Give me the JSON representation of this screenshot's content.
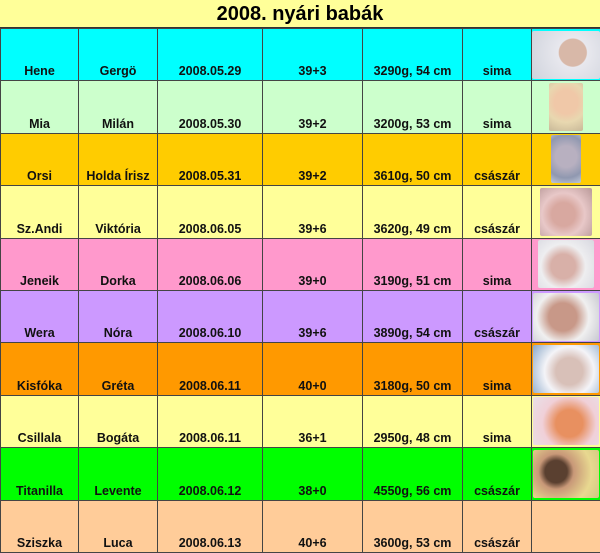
{
  "title": "2008. nyári babák",
  "rows": [
    {
      "mother": "Hene",
      "baby": "Gergö",
      "date": "2008.05.29",
      "week": "39+3",
      "size": "3290g, 54 cm",
      "birth": "sima",
      "color": "#00ffff",
      "photo": true
    },
    {
      "mother": "Mia",
      "baby": "Milán",
      "date": "2008.05.30",
      "week": "39+2",
      "size": "3200g, 53 cm",
      "birth": "sima",
      "color": "#ccffcc",
      "photo": true
    },
    {
      "mother": "Orsi",
      "baby": "Holda Írisz",
      "date": "2008.05.31",
      "week": "39+2",
      "size": "3610g, 50 cm",
      "birth": "császár",
      "color": "#ffcc00",
      "photo": true
    },
    {
      "mother": "Sz.Andi",
      "baby": "Viktória",
      "date": "2008.06.05",
      "week": "39+6",
      "size": "3620g, 49 cm",
      "birth": "császár",
      "color": "#ffff99",
      "photo": true
    },
    {
      "mother": "Jeneik",
      "baby": "Dorka",
      "date": "2008.06.06",
      "week": "39+0",
      "size": "3190g, 51 cm",
      "birth": "sima",
      "color": "#ff99cc",
      "photo": true
    },
    {
      "mother": "Wera",
      "baby": "Nóra",
      "date": "2008.06.10",
      "week": "39+6",
      "size": "3890g, 54 cm",
      "birth": "császár",
      "color": "#cc99ff",
      "photo": true
    },
    {
      "mother": "Kisfóka",
      "baby": "Gréta",
      "date": "2008.06.11",
      "week": "40+0",
      "size": "3180g, 50 cm",
      "birth": "sima",
      "color": "#ff9900",
      "photo": true
    },
    {
      "mother": "Csillala",
      "baby": "Bogáta",
      "date": "2008.06.11",
      "week": "36+1",
      "size": "2950g, 48 cm",
      "birth": "sima",
      "color": "#ffff99",
      "photo": true
    },
    {
      "mother": "Titanilla",
      "baby": "Levente",
      "date": "2008.06.12",
      "week": "38+0",
      "size": "4550g, 56 cm",
      "birth": "császár",
      "color": "#00ff00",
      "photo": true
    },
    {
      "mother": "Sziszka",
      "baby": "Luca",
      "date": "2008.06.13",
      "week": "40+6",
      "size": "3600g, 53 cm",
      "birth": "császár",
      "color": "#ffcc99",
      "photo": false
    }
  ]
}
